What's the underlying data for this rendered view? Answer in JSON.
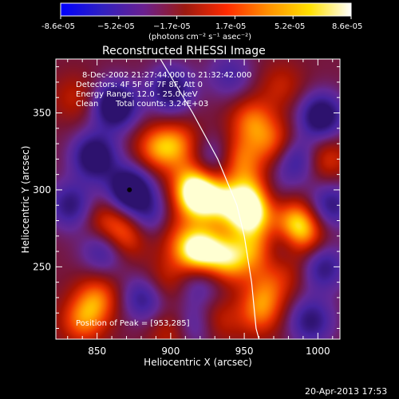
{
  "chart_data": {
    "type": "heatmap",
    "title": "Reconstructed RHESSI Image",
    "xlabel": "Heliocentric X (arcsec)",
    "ylabel": "Heliocentric Y (arcsec)",
    "xlim": [
      822,
      1015
    ],
    "ylim": [
      203,
      385
    ],
    "x_ticks": [
      850,
      900,
      950,
      1000
    ],
    "y_ticks": [
      250,
      300,
      350
    ],
    "colorbar": {
      "range": [
        -8.6e-05,
        8.6e-05
      ],
      "tick_labels": [
        "-8.6e-05",
        "−5.2e-05",
        "−1.7e-05",
        "1.7e-05",
        "5.2e-05",
        "8.6e-05"
      ],
      "units": "(photons cm⁻² s⁻¹ asec⁻²)",
      "colors": [
        "#0000ff",
        "#3020c0",
        "#6a2090",
        "#9c1a10",
        "#ff2a00",
        "#ff9000",
        "#ffe000",
        "#ffffff"
      ]
    },
    "annotations": {
      "time_range": "8-Dec-2002 21:27:44.000 to 21:32:42.000",
      "detectors": "Detectors: 4F 5F 6F 7F 8F, Att 0",
      "energy_range": "Energy Range: 12.0 - 25.0 keV",
      "method": "Clean",
      "total_counts": "Total counts: 3.24E+03",
      "peak_position": "Position of Peak = [953,285]"
    },
    "peak": [
      953,
      285
    ],
    "marked_point": [
      872,
      300
    ],
    "limb_points": [
      [
        893,
        385
      ],
      [
        915,
        350
      ],
      [
        932,
        320
      ],
      [
        945,
        290
      ],
      [
        950,
        270
      ],
      [
        955,
        240
      ],
      [
        958,
        210
      ],
      [
        960,
        203
      ]
    ],
    "blobs": [
      {
        "x": 862,
        "y": 355,
        "v": -0.9
      },
      {
        "x": 900,
        "y": 365,
        "v": -0.7
      },
      {
        "x": 848,
        "y": 322,
        "v": -0.8
      },
      {
        "x": 832,
        "y": 290,
        "v": -0.6
      },
      {
        "x": 872,
        "y": 300,
        "v": -0.95
      },
      {
        "x": 888,
        "y": 282,
        "v": -0.6
      },
      {
        "x": 855,
        "y": 262,
        "v": -0.6
      },
      {
        "x": 1002,
        "y": 348,
        "v": -0.8
      },
      {
        "x": 985,
        "y": 320,
        "v": -0.6
      },
      {
        "x": 1008,
        "y": 290,
        "v": -0.6
      },
      {
        "x": 930,
        "y": 320,
        "v": -0.5
      },
      {
        "x": 882,
        "y": 230,
        "v": -0.6
      },
      {
        "x": 917,
        "y": 212,
        "v": -0.5
      },
      {
        "x": 975,
        "y": 262,
        "v": -0.5
      },
      {
        "x": 1003,
        "y": 250,
        "v": -0.6
      },
      {
        "x": 940,
        "y": 375,
        "v": -0.4
      },
      {
        "x": 965,
        "y": 300,
        "v": -0.5
      },
      {
        "x": 920,
        "y": 240,
        "v": -0.4
      },
      {
        "x": 995,
        "y": 215,
        "v": -0.6
      },
      {
        "x": 890,
        "y": 327,
        "v": 0.55
      },
      {
        "x": 905,
        "y": 330,
        "v": 0.5
      },
      {
        "x": 915,
        "y": 305,
        "v": 0.55
      },
      {
        "x": 918,
        "y": 295,
        "v": 0.85
      },
      {
        "x": 935,
        "y": 293,
        "v": 0.6
      },
      {
        "x": 953,
        "y": 285,
        "v": 1.0
      },
      {
        "x": 958,
        "y": 300,
        "v": 0.75
      },
      {
        "x": 945,
        "y": 320,
        "v": 0.6
      },
      {
        "x": 955,
        "y": 345,
        "v": 0.55
      },
      {
        "x": 970,
        "y": 330,
        "v": 0.5
      },
      {
        "x": 922,
        "y": 260,
        "v": 0.8
      },
      {
        "x": 940,
        "y": 255,
        "v": 0.7
      },
      {
        "x": 960,
        "y": 262,
        "v": 0.55
      },
      {
        "x": 912,
        "y": 262,
        "v": 0.5
      },
      {
        "x": 868,
        "y": 270,
        "v": 0.6
      },
      {
        "x": 855,
        "y": 280,
        "v": 0.4
      },
      {
        "x": 896,
        "y": 278,
        "v": 0.35
      },
      {
        "x": 850,
        "y": 230,
        "v": 0.55
      },
      {
        "x": 840,
        "y": 215,
        "v": 0.55
      },
      {
        "x": 985,
        "y": 280,
        "v": 0.65
      },
      {
        "x": 990,
        "y": 270,
        "v": 0.5
      },
      {
        "x": 960,
        "y": 220,
        "v": 0.5
      },
      {
        "x": 965,
        "y": 235,
        "v": 0.4
      },
      {
        "x": 930,
        "y": 215,
        "v": 0.4
      },
      {
        "x": 980,
        "y": 250,
        "v": 0.35
      },
      {
        "x": 895,
        "y": 240,
        "v": 0.35
      },
      {
        "x": 835,
        "y": 360,
        "v": 0.3
      },
      {
        "x": 1005,
        "y": 320,
        "v": 0.45
      },
      {
        "x": 900,
        "y": 208,
        "v": 0.35
      },
      {
        "x": 975,
        "y": 368,
        "v": 0.3
      }
    ]
  },
  "footer": {
    "timestamp": "20-Apr-2013 17:53"
  }
}
